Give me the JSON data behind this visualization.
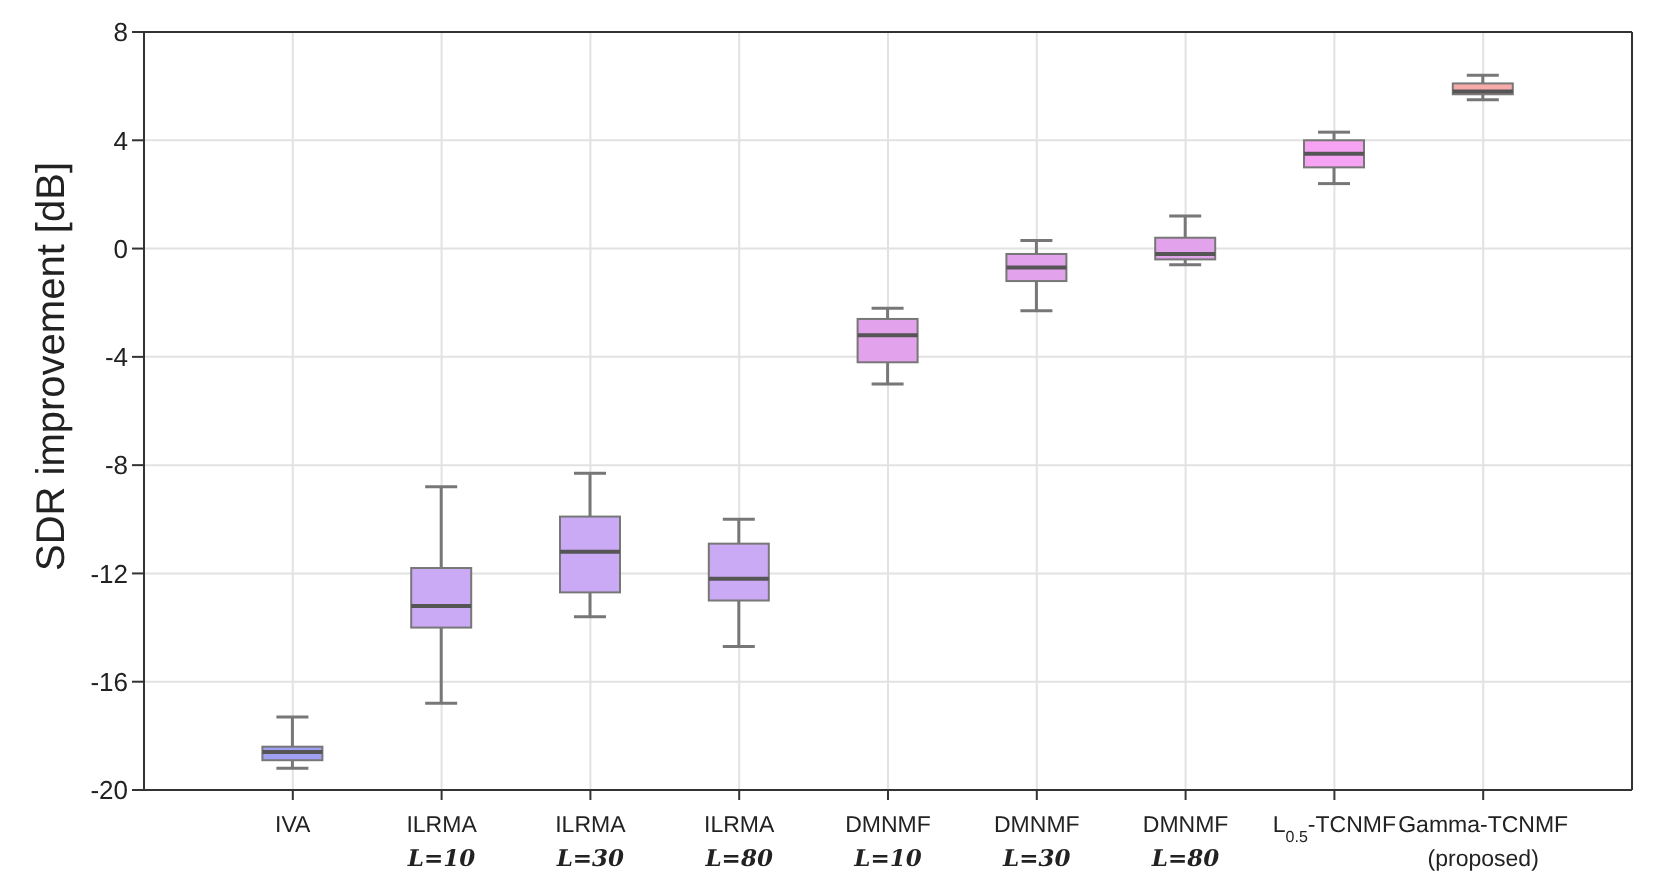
{
  "chart_data": {
    "type": "box",
    "ylabel": "SDR improvement [dB]",
    "categories": [
      "IVA",
      "ILRMA\nL=10",
      "ILRMA\nL=30",
      "ILRMA\nL=80",
      "DMNMF\nL=10",
      "DMNMF\nL=30",
      "DMNMF\nL=80",
      "L$_{0.5}$-TCNMF",
      "Gamma-TCNMF\n(proposed)"
    ],
    "boxes": [
      {
        "low": -19.2,
        "q1": -18.9,
        "median": -18.6,
        "q3": -18.4,
        "high": -17.3
      },
      {
        "low": -16.8,
        "q1": -14.0,
        "median": -13.2,
        "q3": -11.8,
        "high": -8.8
      },
      {
        "low": -13.6,
        "q1": -12.7,
        "median": -11.2,
        "q3": -9.9,
        "high": -8.3
      },
      {
        "low": -14.7,
        "q1": -13.0,
        "median": -12.2,
        "q3": -10.9,
        "high": -10.0
      },
      {
        "low": -5.0,
        "q1": -4.2,
        "median": -3.2,
        "q3": -2.6,
        "high": -2.2
      },
      {
        "low": -2.3,
        "q1": -1.2,
        "median": -0.7,
        "q3": -0.2,
        "high": 0.3
      },
      {
        "low": -0.6,
        "q1": -0.4,
        "median": -0.2,
        "q3": 0.4,
        "high": 1.2
      },
      {
        "low": 2.4,
        "q1": 3.0,
        "median": 3.5,
        "q3": 4.0,
        "high": 4.3
      },
      {
        "low": 5.5,
        "q1": 5.7,
        "median": 5.8,
        "q3": 6.1,
        "high": 6.4
      }
    ],
    "colors": [
      "#a0a0f5",
      "#cbaaf5",
      "#cbaaf5",
      "#cbaaf5",
      "#e3a3ec",
      "#e3a3ec",
      "#e3a3ec",
      "#f7a3f3",
      "#f7aaaa"
    ],
    "ylim": [
      -20,
      8
    ],
    "yticks": [
      -20,
      -16,
      -12,
      -8,
      -4,
      0,
      4,
      8
    ],
    "grid": true
  }
}
